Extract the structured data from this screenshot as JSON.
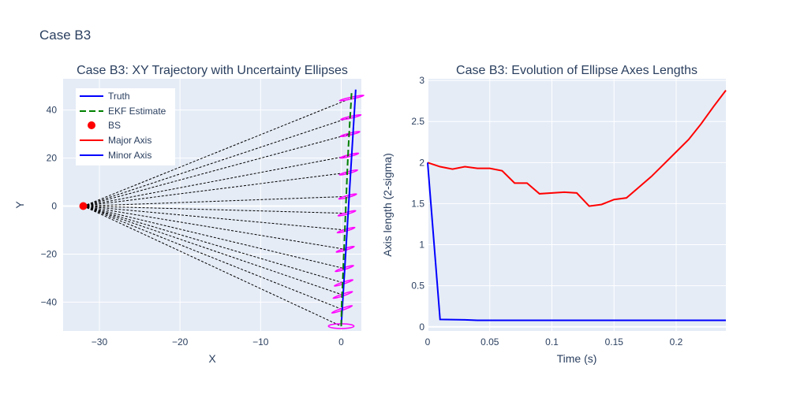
{
  "figure_title": "Case B3",
  "colors": {
    "plot_bg": "#e5ecf6",
    "grid": "#ffffff",
    "truth": "#0000ff",
    "ekf": "#008000",
    "bs": "#ff0000",
    "major": "#ff0000",
    "minor": "#0000ff",
    "ellipse": "#ff00ff",
    "ray": "#000000",
    "text": "#2a3f5f"
  },
  "chart_data": [
    {
      "type": "scatter",
      "title": "Case B3: XY Trajectory with Uncertainty Ellipses",
      "xlabel": "X",
      "ylabel": "Y",
      "xlim": [
        -34.5,
        2.5
      ],
      "ylim": [
        -52,
        53
      ],
      "xticks": [
        -30,
        -20,
        -10,
        0
      ],
      "yticks": [
        -40,
        -20,
        0,
        20,
        40
      ],
      "grid": true,
      "legend_position": "top-left",
      "legend": [
        "Truth",
        "EKF Estimate",
        "BS",
        "Major Axis",
        "Minor Axis"
      ],
      "bs": {
        "x": -32,
        "y": 0
      },
      "truth": {
        "x": [
          0,
          1.8
        ],
        "y": [
          -50,
          48.5
        ]
      },
      "ekf": {
        "x": [
          0,
          0.05,
          0.1,
          0.2,
          0.3,
          0.4,
          0.5,
          0.6,
          0.7,
          0.8,
          0.9,
          1.0,
          1.1,
          1.2,
          1.3
        ],
        "y": [
          -50,
          -42,
          -37,
          -30,
          -22,
          -14,
          -6,
          2,
          10,
          18,
          25,
          31,
          37,
          42,
          48
        ]
      },
      "ray_endpoints": [
        {
          "x": 0,
          "y": -50
        },
        {
          "x": 0.1,
          "y": -43
        },
        {
          "x": 0.2,
          "y": -37
        },
        {
          "x": 0.3,
          "y": -32
        },
        {
          "x": 0.4,
          "y": -26
        },
        {
          "x": 0.5,
          "y": -18
        },
        {
          "x": 0.6,
          "y": -10
        },
        {
          "x": 0.7,
          "y": -3
        },
        {
          "x": 0.8,
          "y": 4
        },
        {
          "x": 0.9,
          "y": 14
        },
        {
          "x": 1.0,
          "y": 21
        },
        {
          "x": 1.1,
          "y": 30
        },
        {
          "x": 1.2,
          "y": 37
        },
        {
          "x": 1.3,
          "y": 45
        }
      ],
      "ellipses": [
        {
          "cx": 0,
          "cy": -50,
          "major": 2.0
        },
        {
          "cx": 0.1,
          "cy": -43,
          "major": 1.9
        },
        {
          "cx": 0.2,
          "cy": -37,
          "major": 1.75
        },
        {
          "cx": 0.3,
          "cy": -32,
          "major": 1.65
        },
        {
          "cx": 0.4,
          "cy": -26,
          "major": 1.6
        },
        {
          "cx": 0.5,
          "cy": -18,
          "major": 1.55
        },
        {
          "cx": 0.6,
          "cy": -10,
          "major": 1.5
        },
        {
          "cx": 0.7,
          "cy": -3,
          "major": 1.5
        },
        {
          "cx": 0.8,
          "cy": 4,
          "major": 1.5
        },
        {
          "cx": 0.9,
          "cy": 14,
          "major": 1.55
        },
        {
          "cx": 1.0,
          "cy": 21,
          "major": 1.6
        },
        {
          "cx": 1.1,
          "cy": 30,
          "major": 1.7
        },
        {
          "cx": 1.2,
          "cy": 37,
          "major": 1.8
        },
        {
          "cx": 1.3,
          "cy": 45,
          "major": 2.3
        }
      ]
    },
    {
      "type": "line",
      "title": "Case B3: Evolution of Ellipse Axes Lengths",
      "xlabel": "Time (s)",
      "ylabel": "Axis length (2-sigma)",
      "xlim": [
        0,
        0.24
      ],
      "ylim": [
        -0.05,
        3.02
      ],
      "xticks": [
        0,
        0.05,
        0.1,
        0.15,
        0.2
      ],
      "xtick_labels": [
        "0",
        "0.05",
        "0.1",
        "0.15",
        "0.2"
      ],
      "yticks": [
        0,
        0.5,
        1,
        1.5,
        2,
        2.5,
        3
      ],
      "ytick_labels": [
        "0",
        "0.5",
        "1",
        "1.5",
        "2",
        "2.5",
        "3"
      ],
      "grid": true,
      "series": [
        {
          "key": "major",
          "x": [
            0,
            0.01,
            0.02,
            0.03,
            0.04,
            0.05,
            0.06,
            0.07,
            0.08,
            0.09,
            0.1,
            0.11,
            0.12,
            0.13,
            0.14,
            0.15,
            0.16,
            0.17,
            0.18,
            0.19,
            0.2,
            0.21,
            0.22,
            0.23,
            0.24
          ],
          "values": [
            2.0,
            1.95,
            1.92,
            1.95,
            1.93,
            1.93,
            1.9,
            1.75,
            1.75,
            1.62,
            1.63,
            1.64,
            1.63,
            1.47,
            1.49,
            1.55,
            1.57,
            1.7,
            1.83,
            1.98,
            2.13,
            2.28,
            2.47,
            2.68,
            2.88
          ]
        },
        {
          "key": "minor",
          "x": [
            0,
            0.01,
            0.02,
            0.03,
            0.04,
            0.05,
            0.1,
            0.15,
            0.2,
            0.24
          ],
          "values": [
            2.0,
            0.09,
            0.088,
            0.085,
            0.08,
            0.08,
            0.08,
            0.08,
            0.08,
            0.08
          ]
        }
      ]
    }
  ]
}
